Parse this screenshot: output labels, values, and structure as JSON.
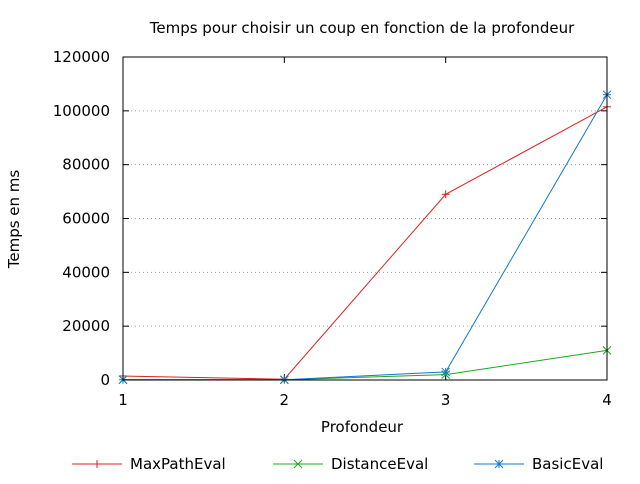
{
  "chart_data": {
    "type": "line",
    "title": "Temps pour choisir un coup en fonction de la profondeur",
    "xlabel": "Profondeur",
    "ylabel": "Temps en ms",
    "x": [
      1,
      2,
      3,
      4
    ],
    "xticks": [
      "1",
      "2",
      "3",
      "4"
    ],
    "xlim": [
      1,
      4
    ],
    "ylim": [
      0,
      120000
    ],
    "yticks": [
      "0",
      "20000",
      "40000",
      "60000",
      "80000",
      "100000",
      "120000"
    ],
    "grid": true,
    "legend_position": "bottom",
    "series": [
      {
        "name": "MaxPathEval",
        "color": "#e0201c",
        "marker": "plus",
        "values": [
          1500,
          300,
          69000,
          101500
        ]
      },
      {
        "name": "DistanceEval",
        "color": "#1fa81f",
        "marker": "cross",
        "values": [
          100,
          100,
          2000,
          11000
        ]
      },
      {
        "name": "BasicEval",
        "color": "#1079d0",
        "marker": "star",
        "values": [
          100,
          100,
          3000,
          106000
        ]
      }
    ]
  }
}
